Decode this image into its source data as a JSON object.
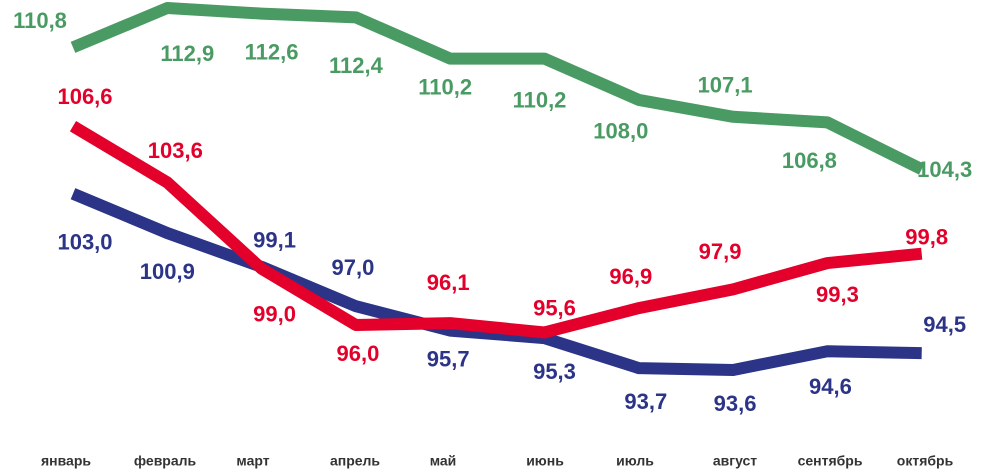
{
  "chart_data": {
    "type": "line",
    "categories": [
      "январь",
      "февраль",
      "март",
      "апрель",
      "май",
      "июнь",
      "июль",
      "август",
      "сентябрь",
      "октябрь"
    ],
    "series": [
      {
        "name": null,
        "color": "#4a9b63",
        "values": [
          110.8,
          112.9,
          112.6,
          112.4,
          110.2,
          110.2,
          108.0,
          107.1,
          106.8,
          104.3
        ],
        "value_labels": [
          "110,8",
          "112,9",
          "112,6",
          "112,4",
          "110,2",
          "110,2",
          "108,0",
          "107,1",
          "106,8",
          "104,3"
        ]
      },
      {
        "name": null,
        "color": "#e3002b",
        "values": [
          106.6,
          103.6,
          99.0,
          96.0,
          96.1,
          95.6,
          96.9,
          97.9,
          99.3,
          99.8
        ],
        "value_labels": [
          "106,6",
          "103,6",
          "99,0",
          "96,0",
          "96,1",
          "95,6",
          "96,9",
          "97,9",
          "99,3",
          "99,8"
        ]
      },
      {
        "name": null,
        "color": "#2b3487",
        "values": [
          103.0,
          100.9,
          99.1,
          97.0,
          95.7,
          95.3,
          93.7,
          93.6,
          94.6,
          94.5
        ],
        "value_labels": [
          "103,0",
          "100,9",
          "99,1",
          "97,0",
          "95,7",
          "95,3",
          "93,7",
          "93,6",
          "94,6",
          "94,5"
        ]
      }
    ]
  }
}
